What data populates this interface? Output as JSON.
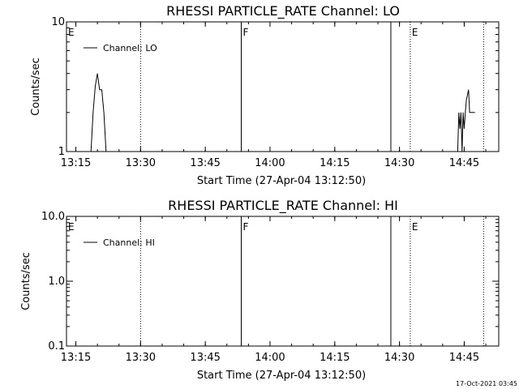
{
  "chart_data": [
    {
      "type": "line",
      "title": "RHESSI PARTICLE_RATE Channel: LO",
      "xlabel": "Start Time (27-Apr-04 13:12:50)",
      "ylabel": "Counts/sec",
      "yscale": "log",
      "ylim": [
        1,
        10
      ],
      "xlim": [
        "13:12:50",
        "14:53:00"
      ],
      "x_ticks": [
        "13:15",
        "13:30",
        "13:45",
        "14:00",
        "14:15",
        "14:30",
        "14:45"
      ],
      "y_ticks": [
        "1",
        "10"
      ],
      "legend": {
        "label": "Channel: LO",
        "position": "top-left"
      },
      "markers": [
        {
          "label": "E",
          "time": "13:12:50",
          "style": "dotted"
        },
        {
          "label": "",
          "time": "13:30:00",
          "style": "dotted"
        },
        {
          "label": "F",
          "time": "13:53:20",
          "style": "solid"
        },
        {
          "label": "",
          "time": "14:28:00",
          "style": "solid"
        },
        {
          "label": "E",
          "time": "14:32:30",
          "style": "dotted"
        },
        {
          "label": "",
          "time": "14:49:30",
          "style": "dotted"
        }
      ],
      "series": [
        {
          "name": "Channel: LO",
          "segments": [
            [
              [
                "13:18:30",
                1
              ],
              [
                "13:19:00",
                2
              ],
              [
                "13:19:30",
                3.2
              ],
              [
                "13:20:00",
                4.0
              ],
              [
                "13:20:30",
                3.0
              ],
              [
                "13:21:00",
                3.0
              ],
              [
                "13:21:30",
                2.0
              ],
              [
                "13:22:00",
                1
              ]
            ],
            [
              [
                "14:43:30",
                1
              ],
              [
                "14:43:45",
                2.0
              ],
              [
                "14:44:00",
                1.5
              ],
              [
                "14:44:15",
                2.0
              ],
              [
                "14:44:30",
                1
              ],
              [
                "14:44:45",
                2.0
              ],
              [
                "14:45:00",
                1.5
              ],
              [
                "14:45:15",
                2.0
              ],
              [
                "14:45:30",
                2.5
              ],
              [
                "14:46:00",
                3.0
              ],
              [
                "14:46:15",
                2.0
              ],
              [
                "14:47:30",
                2.0
              ]
            ]
          ]
        }
      ]
    },
    {
      "type": "line",
      "title": "RHESSI PARTICLE_RATE Channel: HI",
      "xlabel": "Start Time (27-Apr-04 13:12:50)",
      "ylabel": "Counts/sec",
      "yscale": "log",
      "ylim": [
        0.1,
        10
      ],
      "xlim": [
        "13:12:50",
        "14:53:00"
      ],
      "x_ticks": [
        "13:15",
        "13:30",
        "13:45",
        "14:00",
        "14:15",
        "14:30",
        "14:45"
      ],
      "y_ticks": [
        "0.1",
        "1.0",
        "10.0"
      ],
      "legend": {
        "label": "Channel: HI",
        "position": "top-left"
      },
      "markers": [
        {
          "label": "E",
          "time": "13:12:50",
          "style": "dotted"
        },
        {
          "label": "",
          "time": "13:30:00",
          "style": "dotted"
        },
        {
          "label": "F",
          "time": "13:53:20",
          "style": "solid"
        },
        {
          "label": "",
          "time": "14:28:00",
          "style": "solid"
        },
        {
          "label": "E",
          "time": "14:32:30",
          "style": "dotted"
        },
        {
          "label": "",
          "time": "14:49:30",
          "style": "dotted"
        }
      ],
      "series": [
        {
          "name": "Channel: HI",
          "segments": []
        }
      ]
    }
  ],
  "footer": {
    "timestamp": "17-Oct-2021 03:45"
  }
}
